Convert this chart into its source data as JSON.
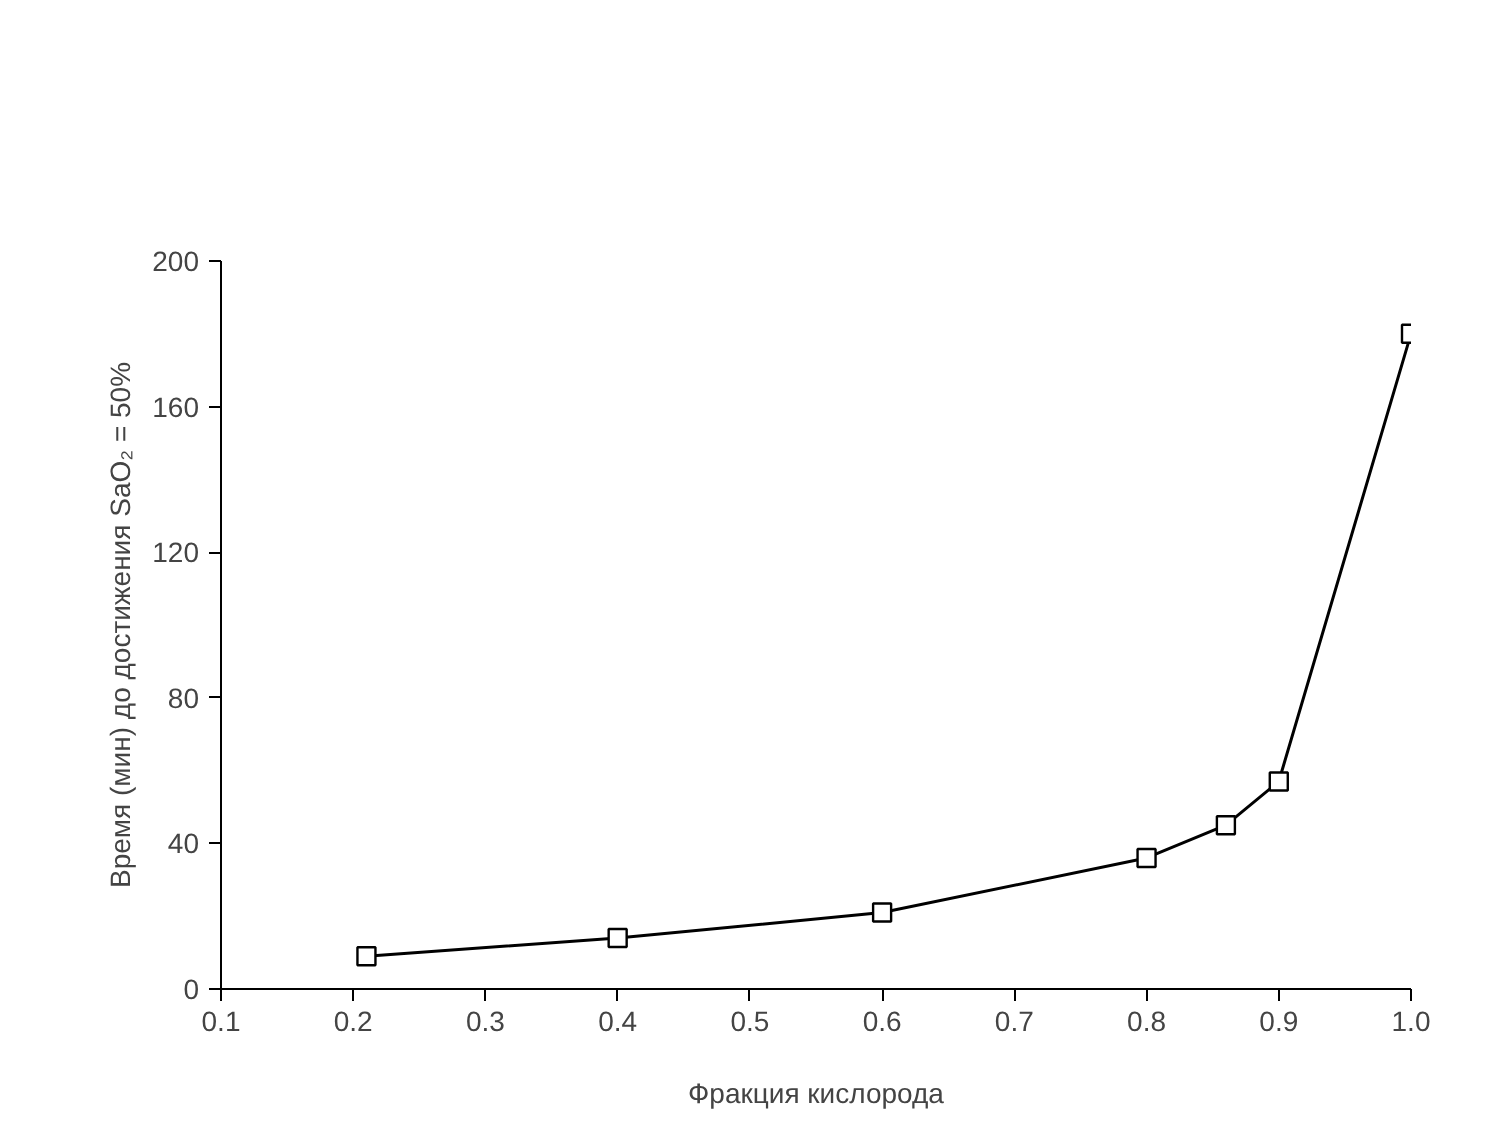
{
  "chart_data": {
    "type": "line",
    "xlabel": "Фракция кислорода",
    "ylabel": "Время (мин) до достижения SaO₂ = 50%",
    "x": [
      0.21,
      0.4,
      0.6,
      0.8,
      0.86,
      0.9,
      1.0
    ],
    "series": [
      {
        "color": "#000000",
        "values": [
          9,
          14,
          21,
          36,
          45,
          57,
          180
        ]
      }
    ],
    "xlim": [
      0.1,
      1.0
    ],
    "ylim": [
      0,
      200
    ],
    "xticks": [
      {
        "value": 0.1,
        "label": "0.1"
      },
      {
        "value": 0.2,
        "label": "0.2"
      },
      {
        "value": 0.3,
        "label": "0.3"
      },
      {
        "value": 0.4,
        "label": "0.4"
      },
      {
        "value": 0.5,
        "label": "0.5"
      },
      {
        "value": 0.6,
        "label": "0.6"
      },
      {
        "value": 0.7,
        "label": "0.7"
      },
      {
        "value": 0.8,
        "label": "0.8"
      },
      {
        "value": 0.9,
        "label": "0.9"
      },
      {
        "value": 1.0,
        "label": "1.0"
      }
    ],
    "yticks": [
      0,
      40,
      80,
      120,
      160,
      200
    ],
    "grid": false,
    "marker": "square",
    "line_style": "solid"
  }
}
